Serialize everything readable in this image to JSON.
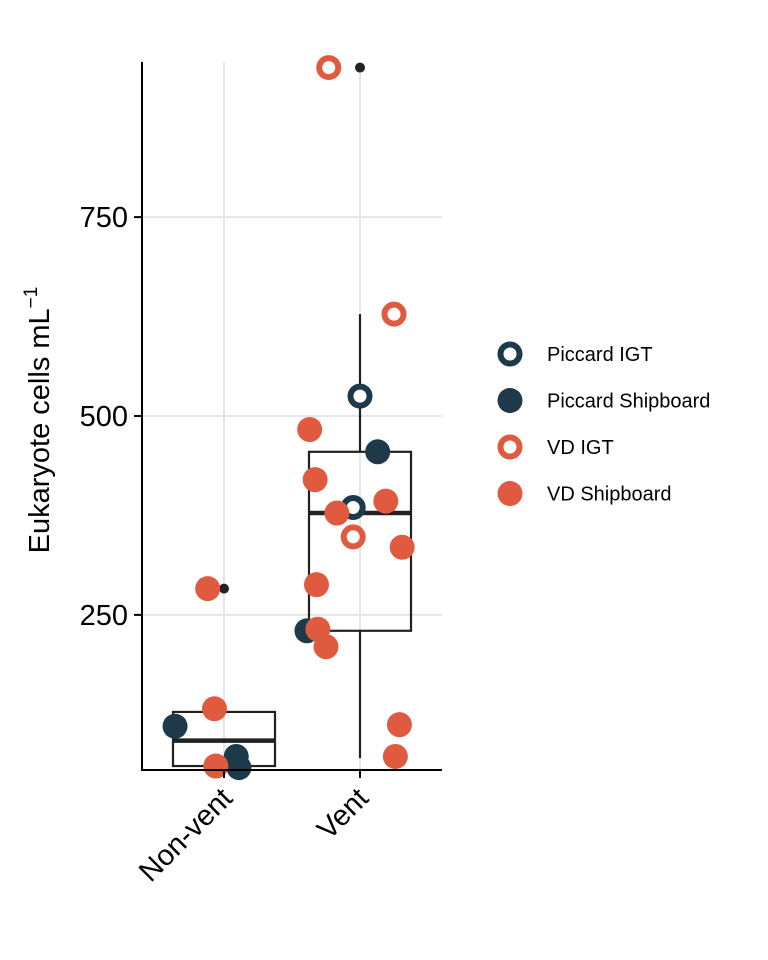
{
  "chart_data": {
    "type": "box",
    "ylabel": "Eukaryote cells  mL",
    "ylabel_superscript": "−1",
    "xlabel": "",
    "categories": [
      "Non-vent",
      "Vent"
    ],
    "yticks": [
      250,
      500,
      750
    ],
    "ylim": [
      55,
      945
    ],
    "grid": true,
    "legend_position": "right",
    "boxes": [
      {
        "category": "Non-vent",
        "q1": 60,
        "median": 92,
        "q3": 128,
        "whisker_low": 60,
        "whisker_high": 128,
        "outliers": [
          283
        ]
      },
      {
        "category": "Vent",
        "q1": 230,
        "median": 378,
        "q3": 455,
        "whisker_low": 70,
        "whisker_high": 628,
        "outliers": [
          938
        ]
      }
    ],
    "series": [
      {
        "name": "Piccard IGT",
        "style": "ring",
        "color": "#1e3a4a",
        "points": [
          {
            "category": "Vent",
            "jitter": 0.0,
            "value": 525
          },
          {
            "category": "Vent",
            "jitter": -0.05,
            "value": 385
          }
        ]
      },
      {
        "name": "Piccard Shipboard",
        "style": "filled",
        "color": "#1e3a4a",
        "points": [
          {
            "category": "Non-vent",
            "jitter": -0.36,
            "value": 110
          },
          {
            "category": "Non-vent",
            "jitter": 0.09,
            "value": 72
          },
          {
            "category": "Non-vent",
            "jitter": 0.11,
            "value": 58
          },
          {
            "category": "Vent",
            "jitter": -0.39,
            "value": 230
          },
          {
            "category": "Vent",
            "jitter": 0.13,
            "value": 455
          }
        ]
      },
      {
        "name": "VD IGT",
        "style": "ring",
        "color": "#e05a40",
        "points": [
          {
            "category": "Vent",
            "jitter": -0.23,
            "value": 938
          },
          {
            "category": "Vent",
            "jitter": 0.25,
            "value": 628
          },
          {
            "category": "Vent",
            "jitter": -0.05,
            "value": 348
          }
        ]
      },
      {
        "name": "VD Shipboard",
        "style": "filled",
        "color": "#e05a40",
        "points": [
          {
            "category": "Non-vent",
            "jitter": -0.12,
            "value": 283
          },
          {
            "category": "Non-vent",
            "jitter": -0.07,
            "value": 132
          },
          {
            "category": "Non-vent",
            "jitter": -0.06,
            "value": 60
          },
          {
            "category": "Vent",
            "jitter": -0.37,
            "value": 483
          },
          {
            "category": "Vent",
            "jitter": -0.33,
            "value": 420
          },
          {
            "category": "Vent",
            "jitter": -0.17,
            "value": 378
          },
          {
            "category": "Vent",
            "jitter": 0.19,
            "value": 393
          },
          {
            "category": "Vent",
            "jitter": 0.31,
            "value": 335
          },
          {
            "category": "Vent",
            "jitter": -0.32,
            "value": 288
          },
          {
            "category": "Vent",
            "jitter": -0.31,
            "value": 232
          },
          {
            "category": "Vent",
            "jitter": -0.25,
            "value": 210
          },
          {
            "category": "Vent",
            "jitter": 0.29,
            "value": 112
          },
          {
            "category": "Vent",
            "jitter": 0.26,
            "value": 72
          }
        ]
      }
    ]
  }
}
